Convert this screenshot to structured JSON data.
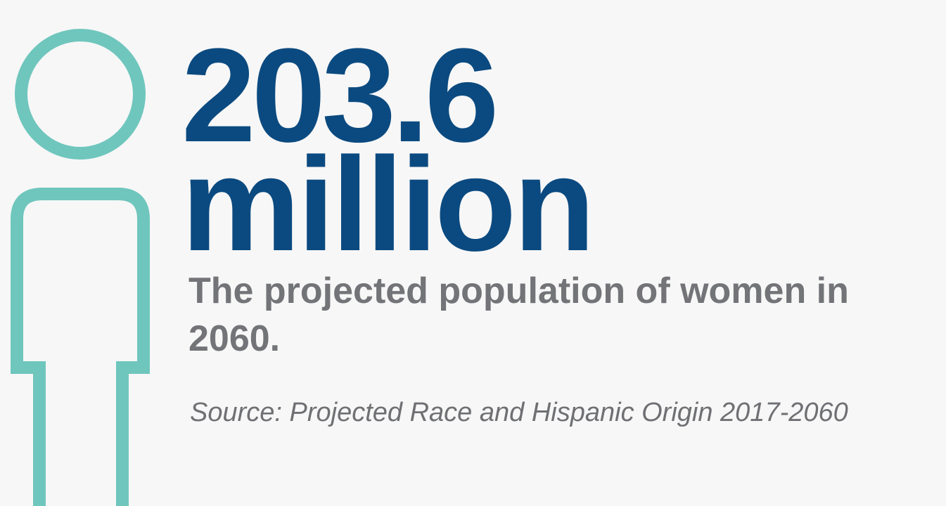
{
  "stat": {
    "number": "203.6",
    "unit": "million"
  },
  "description": "The projected population of women in 2060.",
  "source": "Source: Projected Race and Hispanic Origin 2017-2060",
  "icon": {
    "name": "person-outline-icon",
    "color": "#6fc6bd"
  },
  "colors": {
    "stat": "#0b4a80",
    "description": "#737478",
    "background": "#f7f7f7"
  }
}
